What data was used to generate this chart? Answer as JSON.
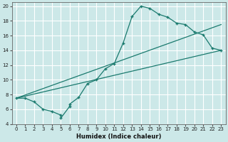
{
  "xlabel": "Humidex (Indice chaleur)",
  "bg_color": "#cce8e8",
  "grid_color": "#ffffff",
  "line_color": "#1a7a6e",
  "xlim": [
    -0.5,
    23.5
  ],
  "ylim": [
    4,
    20.5
  ],
  "xticks": [
    0,
    1,
    2,
    3,
    4,
    5,
    6,
    7,
    8,
    9,
    10,
    11,
    12,
    13,
    14,
    15,
    16,
    17,
    18,
    19,
    20,
    21,
    22,
    23
  ],
  "yticks": [
    4,
    6,
    8,
    10,
    12,
    14,
    16,
    18,
    20
  ],
  "curve_x": [
    0,
    1,
    2,
    3,
    4,
    5,
    5,
    6,
    6,
    7,
    8,
    9,
    10,
    11,
    12,
    13,
    14,
    15,
    16,
    17,
    18,
    19,
    20,
    21,
    22,
    23
  ],
  "curve_y": [
    7.5,
    7.5,
    7.0,
    6.0,
    5.7,
    5.2,
    4.8,
    6.4,
    6.7,
    7.6,
    9.5,
    10.0,
    11.5,
    12.2,
    15.0,
    18.6,
    20.0,
    19.7,
    18.9,
    18.5,
    17.7,
    17.5,
    16.5,
    16.1,
    14.3,
    14.0
  ],
  "line1_x": [
    0,
    23
  ],
  "line1_y": [
    7.5,
    14.0
  ],
  "line2_x": [
    0,
    23
  ],
  "line2_y": [
    7.5,
    17.5
  ]
}
